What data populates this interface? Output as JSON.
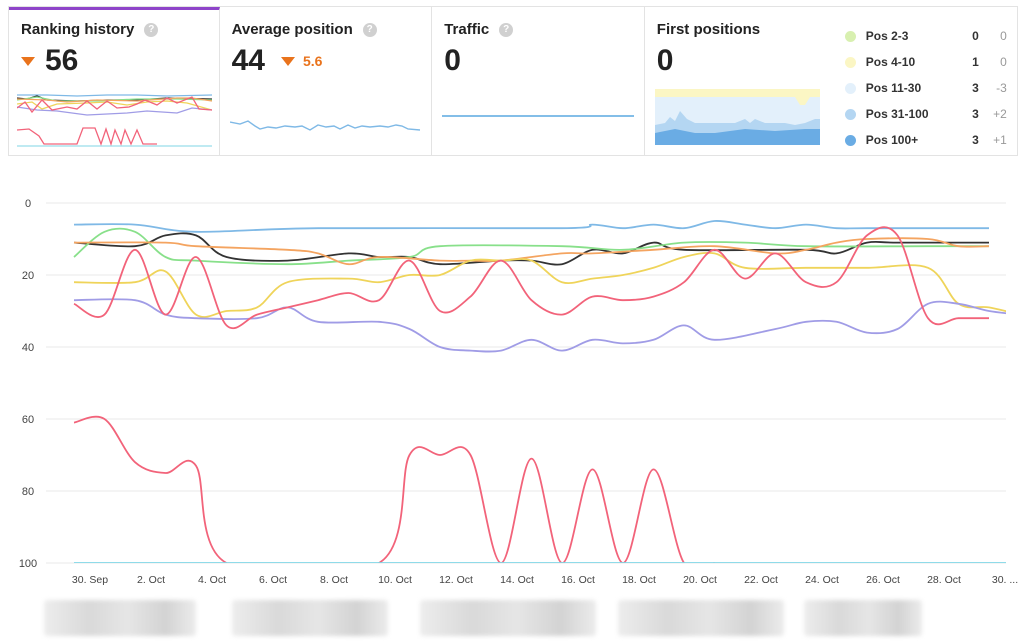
{
  "cards": {
    "ranking_history": {
      "title": "Ranking history",
      "value": "56"
    },
    "average_position": {
      "title": "Average position",
      "value": "44",
      "delta": "5.6"
    },
    "traffic": {
      "title": "Traffic",
      "value": "0"
    },
    "first_positions": {
      "title": "First positions",
      "value": "0",
      "legend": [
        {
          "label": "Pos 2-3",
          "count": "0",
          "change": "0",
          "color": "#d8f0b0"
        },
        {
          "label": "Pos 4-10",
          "count": "1",
          "change": "0",
          "color": "#fbf6c4"
        },
        {
          "label": "Pos 11-30",
          "count": "3",
          "change": "-3",
          "color": "#e3f0fb"
        },
        {
          "label": "Pos 31-100",
          "count": "3",
          "change": "+2",
          "color": "#b4d6f2"
        },
        {
          "label": "Pos 100+",
          "count": "3",
          "change": "+1",
          "color": "#6aace4"
        }
      ]
    }
  },
  "colors": {
    "accent": "#8e44c9",
    "down": "#e9731c"
  },
  "chart_data": {
    "type": "line",
    "y_reversed": true,
    "ylim": [
      0,
      100
    ],
    "yticks": [
      "0",
      "20",
      "40",
      "60",
      "80",
      "100"
    ],
    "xticks": [
      "30. Sep",
      "2. Oct",
      "4. Oct",
      "6. Oct",
      "8. Oct",
      "10. Oct",
      "12. Oct",
      "14. Oct",
      "16. Oct",
      "18. Oct",
      "20. Oct",
      "22. Oct",
      "24. Oct",
      "26. Oct",
      "28. Oct",
      "30. ..."
    ],
    "x_days": 32,
    "series": [
      {
        "color": "#7fb9e6",
        "points": [
          [
            0,
            6
          ],
          [
            2,
            6
          ],
          [
            4,
            8
          ],
          [
            8,
            7
          ],
          [
            16,
            7
          ],
          [
            17,
            6
          ],
          [
            18,
            7
          ],
          [
            19,
            6
          ],
          [
            20,
            7
          ],
          [
            21,
            5
          ],
          [
            22,
            6
          ],
          [
            23,
            7
          ],
          [
            24,
            6
          ],
          [
            25,
            7
          ],
          [
            26,
            7
          ],
          [
            29,
            7
          ],
          [
            30,
            7
          ]
        ]
      },
      {
        "color": "#333333",
        "points": [
          [
            0,
            11
          ],
          [
            2,
            12
          ],
          [
            3,
            9
          ],
          [
            4,
            9
          ],
          [
            5,
            15
          ],
          [
            7,
            16
          ],
          [
            9,
            14
          ],
          [
            10,
            15
          ],
          [
            11,
            15
          ],
          [
            12,
            17
          ],
          [
            14,
            16
          ],
          [
            15,
            16
          ],
          [
            16,
            17
          ],
          [
            17,
            13
          ],
          [
            18,
            14
          ],
          [
            19,
            11
          ],
          [
            20,
            13
          ],
          [
            24,
            13
          ],
          [
            25,
            14
          ],
          [
            26,
            11
          ],
          [
            27,
            11
          ],
          [
            30,
            11
          ]
        ]
      },
      {
        "color": "#88e08a",
        "points": [
          [
            0,
            15
          ],
          [
            1,
            8
          ],
          [
            2,
            8
          ],
          [
            3,
            15
          ],
          [
            4,
            16
          ],
          [
            7,
            17
          ],
          [
            9,
            16
          ],
          [
            11,
            15
          ],
          [
            12,
            12
          ],
          [
            16,
            12
          ],
          [
            18,
            13
          ],
          [
            20,
            11
          ],
          [
            22,
            11
          ],
          [
            24,
            12
          ],
          [
            28,
            12
          ],
          [
            30,
            12
          ]
        ]
      },
      {
        "color": "#f4a460",
        "points": [
          [
            0,
            11
          ],
          [
            3,
            11
          ],
          [
            4,
            12
          ],
          [
            7,
            13
          ],
          [
            8,
            14
          ],
          [
            9,
            17
          ],
          [
            10,
            15
          ],
          [
            12,
            16
          ],
          [
            13,
            16
          ],
          [
            14,
            16
          ],
          [
            16,
            14
          ],
          [
            17,
            14
          ],
          [
            19,
            13
          ],
          [
            21,
            12
          ],
          [
            23,
            14
          ],
          [
            24,
            13
          ],
          [
            25,
            11
          ],
          [
            26,
            10
          ],
          [
            28,
            10
          ],
          [
            29,
            12
          ],
          [
            30,
            12
          ]
        ]
      },
      {
        "color": "#efd45a",
        "points": [
          [
            0,
            22
          ],
          [
            2,
            22
          ],
          [
            3,
            19
          ],
          [
            4,
            31
          ],
          [
            5,
            30
          ],
          [
            6,
            29
          ],
          [
            7,
            22
          ],
          [
            9,
            21
          ],
          [
            10,
            22
          ],
          [
            11,
            20
          ],
          [
            12,
            20
          ],
          [
            13,
            16
          ],
          [
            14,
            16
          ],
          [
            15,
            16
          ],
          [
            16,
            22
          ],
          [
            17,
            21
          ],
          [
            18,
            20
          ],
          [
            19,
            18
          ],
          [
            20,
            15
          ],
          [
            21,
            14
          ],
          [
            22,
            18
          ],
          [
            24,
            18
          ],
          [
            26,
            18
          ],
          [
            28,
            18
          ],
          [
            29,
            28
          ],
          [
            30,
            29
          ],
          [
            31,
            31
          ]
        ]
      },
      {
        "color": "#a09ce6",
        "points": [
          [
            0,
            27
          ],
          [
            2,
            27
          ],
          [
            3,
            31
          ],
          [
            4,
            32
          ],
          [
            6,
            32
          ],
          [
            7,
            29
          ],
          [
            8,
            33
          ],
          [
            10,
            33
          ],
          [
            11,
            35
          ],
          [
            12,
            40
          ],
          [
            13,
            41
          ],
          [
            14,
            41
          ],
          [
            15,
            38
          ],
          [
            16,
            41
          ],
          [
            17,
            38
          ],
          [
            18,
            39
          ],
          [
            19,
            38
          ],
          [
            20,
            34
          ],
          [
            21,
            38
          ],
          [
            23,
            35
          ],
          [
            24,
            33
          ],
          [
            25,
            33
          ],
          [
            26,
            36
          ],
          [
            27,
            35
          ],
          [
            28,
            28
          ],
          [
            29,
            28
          ],
          [
            30,
            30
          ],
          [
            31,
            31
          ]
        ]
      },
      {
        "color": "#f2637a",
        "points": [
          [
            0,
            28
          ],
          [
            1,
            31
          ],
          [
            2,
            13
          ],
          [
            3,
            31
          ],
          [
            4,
            15
          ],
          [
            5,
            34
          ],
          [
            6,
            31
          ],
          [
            7,
            29
          ],
          [
            8,
            27
          ],
          [
            9,
            25
          ],
          [
            10,
            27
          ],
          [
            11,
            16
          ],
          [
            12,
            30
          ],
          [
            13,
            26
          ],
          [
            14,
            16
          ],
          [
            15,
            27
          ],
          [
            16,
            31
          ],
          [
            17,
            26
          ],
          [
            18,
            27
          ],
          [
            19,
            26
          ],
          [
            20,
            22
          ],
          [
            21,
            13
          ],
          [
            22,
            21
          ],
          [
            23,
            14
          ],
          [
            24,
            22
          ],
          [
            25,
            22
          ],
          [
            26,
            9
          ],
          [
            27,
            9
          ],
          [
            28,
            32
          ],
          [
            29,
            32
          ],
          [
            30,
            32
          ]
        ]
      },
      {
        "color": "#f2637a",
        "points": [
          [
            0,
            61
          ],
          [
            1,
            60
          ],
          [
            2,
            72
          ],
          [
            3,
            75
          ],
          [
            4,
            73
          ],
          [
            5,
            101
          ],
          [
            10,
            101
          ],
          [
            11,
            70
          ],
          [
            12,
            70
          ],
          [
            13,
            70
          ],
          [
            14,
            101
          ],
          [
            15,
            71
          ],
          [
            16,
            101
          ],
          [
            17,
            74
          ],
          [
            18,
            101
          ],
          [
            19,
            74
          ],
          [
            20,
            101
          ],
          [
            21,
            101
          ]
        ]
      },
      {
        "color": "#7fd6e6",
        "points": [
          [
            0,
            101
          ],
          [
            31,
            101
          ]
        ]
      }
    ]
  }
}
